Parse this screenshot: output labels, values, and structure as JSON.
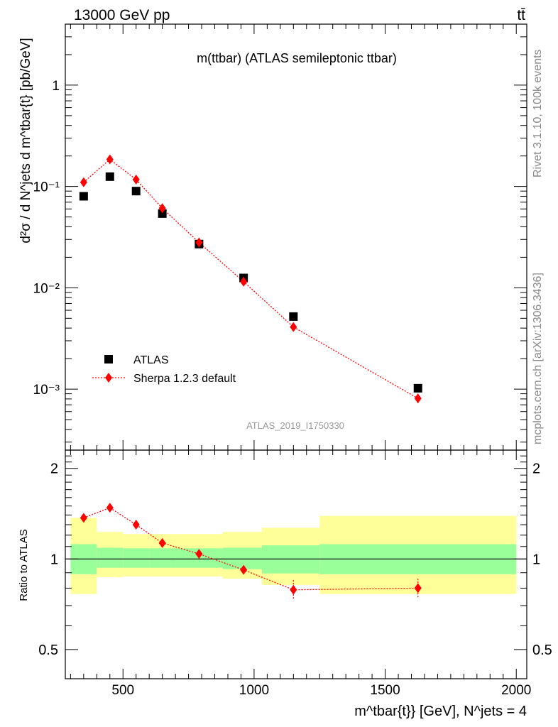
{
  "header": {
    "energy_label": "13000 GeV pp",
    "process_label": "tt̄"
  },
  "side_labels": {
    "rivet": "Rivet 3.1.10,  100k events",
    "mcplots": "mcplots.cern.ch [arXiv:1306.3436]"
  },
  "colors": {
    "data": "#000000",
    "mc": "#ff0000",
    "band_inner": "#99ff99",
    "band_outer": "#ffff99",
    "side_text": "#888888"
  },
  "chart_data": [
    {
      "type": "scatter",
      "title": "m(ttbar) (ATLAS semileptonic ttbar)",
      "analysis_label": "ATLAS_2019_I1750330",
      "ylabel": "d²σ / d N^jets d m^tbar{t} [pb/GeV]",
      "yscale": "log",
      "xlim": [
        280,
        2040
      ],
      "ylim": [
        0.00025,
        4
      ],
      "ytick_labels": [
        "1",
        "10⁻¹",
        "10⁻²",
        "10⁻³"
      ],
      "legend_position": "lower-left",
      "series": [
        {
          "name": "ATLAS",
          "marker": "square",
          "x": [
            350,
            450,
            550,
            650,
            790,
            960,
            1150,
            1625
          ],
          "values": [
            0.08,
            0.125,
            0.09,
            0.054,
            0.027,
            0.0125,
            0.0052,
            0.00102
          ]
        },
        {
          "name": "Sherpa 1.2.3 default",
          "marker": "diamond",
          "line": "dotted",
          "x": [
            350,
            450,
            550,
            650,
            790,
            960,
            1150,
            1625
          ],
          "values": [
            0.11,
            0.185,
            0.117,
            0.061,
            0.028,
            0.0115,
            0.0041,
            0.00081
          ]
        }
      ]
    },
    {
      "type": "scatter",
      "ylabel": "Ratio to ATLAS",
      "xlabel": "m^tbar{t}} [GeV], N^jets = 4",
      "xlim": [
        280,
        2040
      ],
      "ylim": [
        0.4,
        2.3
      ],
      "xtick_labels": [
        "500",
        "1000",
        "1500",
        "2000"
      ],
      "ytick_labels": [
        "0.5",
        "1",
        "2"
      ],
      "bin_edges": [
        300,
        400,
        500,
        600,
        700,
        880,
        1030,
        1250,
        2000
      ],
      "uncertainty_bands": {
        "inner_low": [
          0.89,
          0.935,
          0.935,
          0.935,
          0.935,
          0.925,
          0.895,
          0.89
        ],
        "inner_high": [
          1.12,
          1.09,
          1.085,
          1.085,
          1.085,
          1.09,
          1.11,
          1.12
        ],
        "outer_low": [
          0.765,
          0.87,
          0.875,
          0.875,
          0.875,
          0.86,
          0.82,
          0.765
        ],
        "outer_high": [
          1.37,
          1.23,
          1.21,
          1.21,
          1.21,
          1.23,
          1.27,
          1.39
        ]
      },
      "series": [
        {
          "name": "Sherpa 1.2.3 default",
          "marker": "diamond",
          "line": "dotted",
          "x": [
            350,
            450,
            550,
            650,
            790,
            960,
            1150,
            1625
          ],
          "values": [
            1.37,
            1.48,
            1.3,
            1.13,
            1.04,
            0.92,
            0.79,
            0.8
          ],
          "error": [
            0.02,
            0.02,
            0.02,
            0.02,
            0.02,
            0.02,
            0.06,
            0.06
          ]
        }
      ]
    }
  ]
}
